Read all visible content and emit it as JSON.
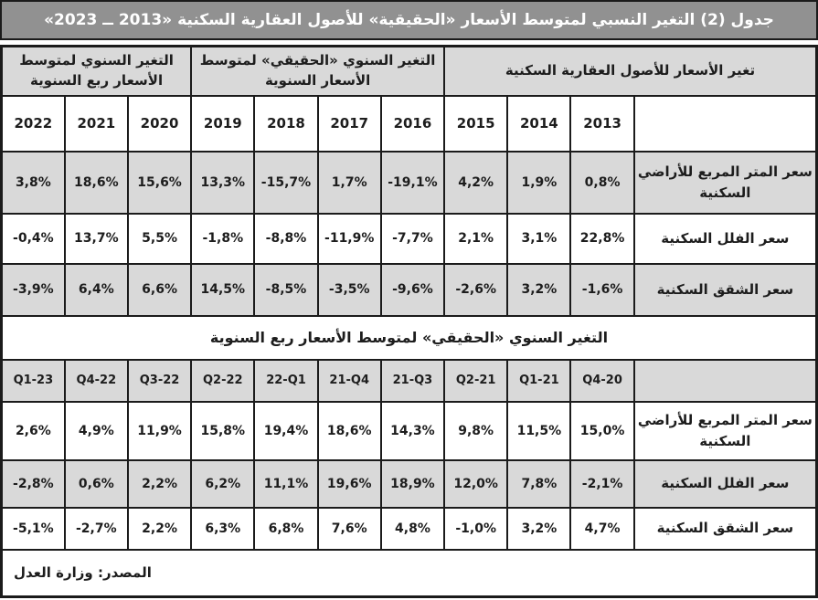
{
  "title": "جدول (2) التغير النسبي لمتوسط الأسعار «الحقيقية» للأصول العقارية السكنية «2013 ــ 2023»",
  "colors": {
    "title_bar_bg": "#919191",
    "title_text": "#ffffff",
    "header_gray": "#d9d9d9",
    "stripe_gray": "#d9d9d9",
    "border_black": "#1b1b1b",
    "text_black": "#1d1d1d"
  },
  "annual_section": {
    "group_headers": [
      {
        "label": "التغير السنوي لمتوسط\nالأسعار ربع السنوية",
        "span": 3
      },
      {
        "label": "التغير السنوي «الحقيقي» لمتوسط\nالأسعار السنوية",
        "span": 4
      },
      {
        "label": "تغير الأسعار للأصول العقارية السكنية",
        "span": 4
      }
    ],
    "years": [
      "2022",
      "2021",
      "2020",
      "2019",
      "2018",
      "2017",
      "2016",
      "2015",
      "2014",
      "2013"
    ],
    "rows": [
      {
        "label": "سعر المتر المربع للأراضي\nالسكنية",
        "values": [
          "3,8%",
          "18,6%",
          "15,6%",
          "13,3%",
          "-15,7%",
          "1,7%",
          "-19,1%",
          "4,2%",
          "1,9%",
          "0,8%"
        ]
      },
      {
        "label": "سعر الفلل السكنية",
        "values": [
          "-0,4%",
          "13,7%",
          "5,5%",
          "-1,8%",
          "-8,8%",
          "-11,9%",
          "-7,7%",
          "2,1%",
          "3,1%",
          "22,8%"
        ]
      },
      {
        "label": "سعر الشقق السكنية",
        "values": [
          "-3,9%",
          "6,4%",
          "6,6%",
          "14,5%",
          "-8,5%",
          "-3,5%",
          "-9,6%",
          "-2,6%",
          "3,2%",
          "-1,6%"
        ]
      }
    ]
  },
  "quarterly_section": {
    "banner": "التغير السنوي «الحقيقي» لمتوسط الأسعار ربع السنوية",
    "quarters": [
      "Q1-23",
      "Q4-22",
      "Q3-22",
      "Q2-22",
      "22-Q1",
      "21-Q4",
      "21-Q3",
      "Q2-21",
      "Q1-21",
      "Q4-20"
    ],
    "rows": [
      {
        "label": "سعر المتر المربع للأراضي\nالسكنية",
        "values": [
          "2,6%",
          "4,9%",
          "11,9%",
          "15,8%",
          "19,4%",
          "18,6%",
          "14,3%",
          "9,8%",
          "11,5%",
          "15,0%"
        ]
      },
      {
        "label": "سعر الفلل السكنية",
        "values": [
          "-2,8%",
          "0,6%",
          "2,2%",
          "6,2%",
          "11,1%",
          "19,6%",
          "18,9%",
          "12,0%",
          "7,8%",
          "-2,1%"
        ]
      },
      {
        "label": "سعر الشقق السكنية",
        "values": [
          "-5,1%",
          "-2,7%",
          "2,2%",
          "6,3%",
          "6,8%",
          "7,6%",
          "4,8%",
          "-1,0%",
          "3,2%",
          "4,7%"
        ]
      }
    ]
  },
  "footer": {
    "source": "المصدر: وزارة العدل"
  }
}
